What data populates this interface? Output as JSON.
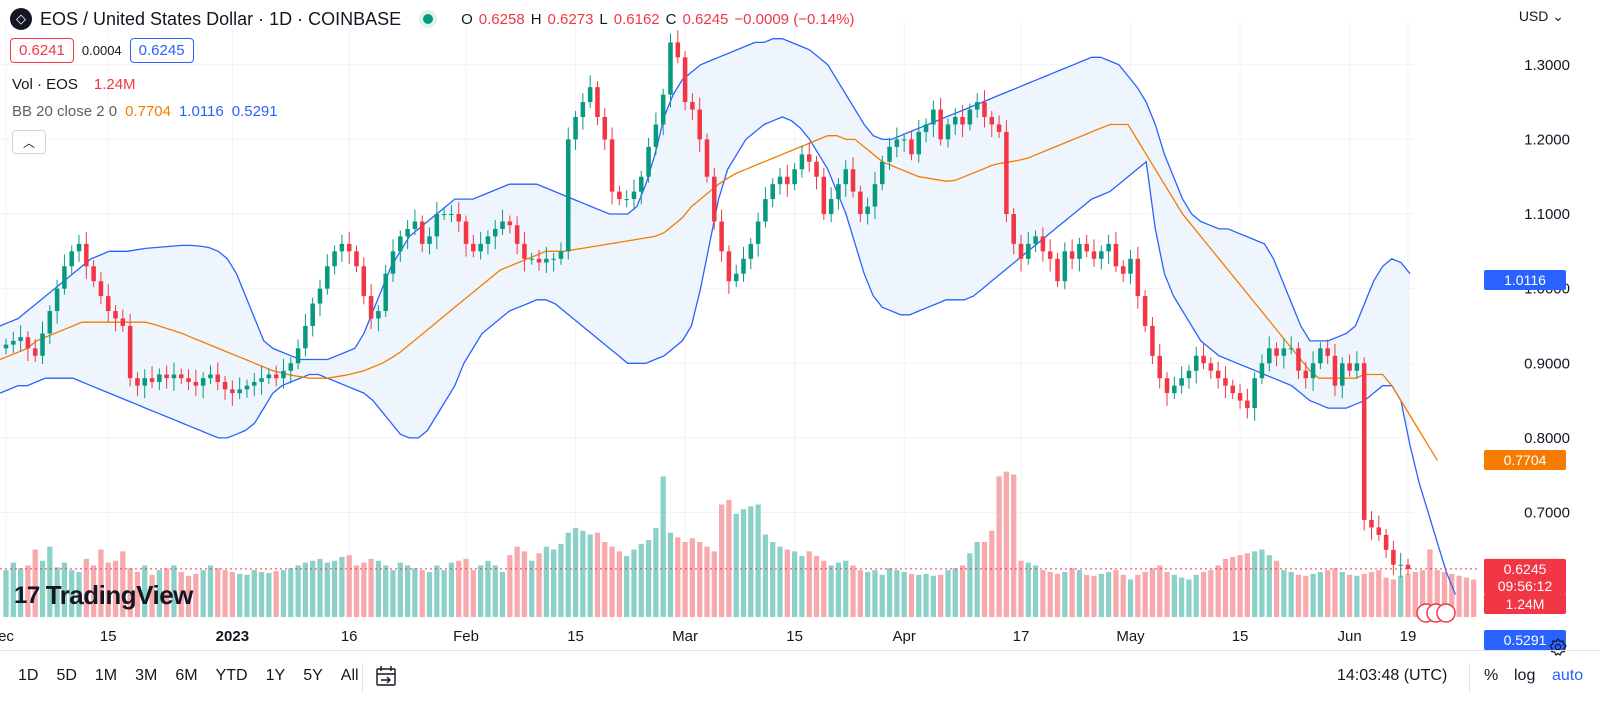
{
  "header": {
    "symbol_title": "EOS / United States Dollar · 1D · COINBASE",
    "ohlc": [
      {
        "k": "O",
        "v": "0.6258"
      },
      {
        "k": "H",
        "v": "0.6273"
      },
      {
        "k": "L",
        "v": "0.6162"
      },
      {
        "k": "C",
        "v": "0.6245"
      }
    ],
    "change": "−0.0009 (−0.14%)",
    "currency": "USD"
  },
  "pricebox": {
    "bid": "0.6241",
    "spread": "0.0004",
    "ask": "0.6245"
  },
  "legend": {
    "volume": {
      "label": "Vol · EOS",
      "value": "1.24M"
    },
    "bb": {
      "label": "BB 20 close 2 0",
      "mid": "0.7704",
      "upper": "1.0116",
      "lower": "0.5291"
    }
  },
  "badges": {
    "upper": "1.0116",
    "mid": "0.7704",
    "price": "0.6245",
    "countdown": "09:56:12",
    "lower": "0.5291",
    "volume": "1.24M"
  },
  "toolbar": {
    "ranges": [
      "1D",
      "5D",
      "1M",
      "3M",
      "6M",
      "YTD",
      "1Y",
      "5Y",
      "All"
    ],
    "clock": "14:03:48 (UTC)",
    "pct": "%",
    "log": "log",
    "auto": "auto"
  },
  "brand": {
    "name": "TradingView"
  },
  "colors": {
    "up": "#089981",
    "down": "#f23645",
    "upVol": "#8cd1c7",
    "downVol": "#f7a9ae",
    "bbMid": "#f57c00",
    "bbBand": "#2962ff",
    "bbFill": "#eaf2fb"
  },
  "chart_data": {
    "type": "candlestick",
    "x_tick_labels": [
      "ec",
      "15",
      "2023",
      "16",
      "Feb",
      "15",
      "Mar",
      "15",
      "Apr",
      "17",
      "May",
      "15",
      "Jun",
      "19"
    ],
    "y_ticks": [
      "0.7000",
      "0.8000",
      "0.9000",
      "1.0000",
      "1.1000",
      "1.2000",
      "1.3000"
    ],
    "ylim": [
      0.56,
      1.36
    ],
    "grid": true,
    "closes": [
      0.925,
      0.93,
      0.935,
      0.92,
      0.91,
      0.94,
      0.97,
      1.0,
      1.03,
      1.05,
      1.06,
      1.03,
      1.01,
      0.99,
      0.97,
      0.96,
      0.95,
      0.88,
      0.87,
      0.88,
      0.875,
      0.885,
      0.88,
      0.885,
      0.88,
      0.875,
      0.87,
      0.88,
      0.885,
      0.875,
      0.865,
      0.86,
      0.865,
      0.87,
      0.875,
      0.88,
      0.885,
      0.88,
      0.89,
      0.9,
      0.92,
      0.95,
      0.98,
      1.0,
      1.03,
      1.05,
      1.06,
      1.05,
      1.03,
      0.99,
      0.96,
      0.97,
      1.02,
      1.05,
      1.07,
      1.08,
      1.09,
      1.06,
      1.07,
      1.1,
      1.1,
      1.1,
      1.09,
      1.06,
      1.05,
      1.06,
      1.07,
      1.08,
      1.09,
      1.085,
      1.06,
      1.04,
      1.04,
      1.035,
      1.04,
      1.04,
      1.05,
      1.2,
      1.23,
      1.25,
      1.27,
      1.23,
      1.2,
      1.13,
      1.12,
      1.12,
      1.13,
      1.15,
      1.19,
      1.22,
      1.26,
      1.33,
      1.31,
      1.25,
      1.24,
      1.2,
      1.15,
      1.09,
      1.05,
      1.01,
      1.02,
      1.04,
      1.06,
      1.09,
      1.12,
      1.14,
      1.15,
      1.14,
      1.16,
      1.18,
      1.17,
      1.15,
      1.1,
      1.12,
      1.14,
      1.16,
      1.13,
      1.1,
      1.11,
      1.14,
      1.17,
      1.19,
      1.2,
      1.2,
      1.18,
      1.21,
      1.22,
      1.24,
      1.2,
      1.22,
      1.23,
      1.22,
      1.24,
      1.25,
      1.23,
      1.22,
      1.21,
      1.1,
      1.06,
      1.04,
      1.06,
      1.07,
      1.05,
      1.04,
      1.01,
      1.05,
      1.04,
      1.06,
      1.05,
      1.04,
      1.05,
      1.06,
      1.03,
      1.02,
      1.04,
      0.99,
      0.95,
      0.91,
      0.88,
      0.86,
      0.87,
      0.88,
      0.89,
      0.91,
      0.9,
      0.89,
      0.88,
      0.87,
      0.86,
      0.85,
      0.84,
      0.88,
      0.9,
      0.92,
      0.91,
      0.92,
      0.92,
      0.89,
      0.88,
      0.9,
      0.92,
      0.91,
      0.87,
      0.9,
      0.89,
      0.9,
      0.69,
      0.68,
      0.67,
      0.65,
      0.63,
      0.63,
      0.6245
    ],
    "volumes": [
      50,
      58,
      52,
      55,
      72,
      60,
      75,
      53,
      58,
      50,
      48,
      62,
      55,
      72,
      58,
      60,
      70,
      52,
      48,
      55,
      45,
      50,
      52,
      55,
      48,
      44,
      46,
      50,
      55,
      52,
      50,
      48,
      46,
      45,
      50,
      48,
      47,
      49,
      50,
      52,
      55,
      58,
      60,
      62,
      58,
      60,
      64,
      66,
      55,
      58,
      62,
      60,
      55,
      50,
      58,
      55,
      52,
      50,
      48,
      55,
      50,
      58,
      60,
      62,
      50,
      55,
      60,
      55,
      48,
      66,
      75,
      70,
      60,
      68,
      75,
      72,
      78,
      90,
      95,
      92,
      88,
      90,
      80,
      75,
      70,
      65,
      72,
      78,
      82,
      95,
      150,
      90,
      85,
      80,
      84,
      80,
      75,
      70,
      120,
      125,
      110,
      115,
      118,
      120,
      88,
      80,
      75,
      72,
      70,
      65,
      70,
      65,
      60,
      55,
      58,
      60,
      55,
      50,
      48,
      50,
      45,
      52,
      50,
      48,
      46,
      45,
      46,
      44,
      45,
      50,
      52,
      55,
      68,
      80,
      80,
      92,
      150,
      155,
      152,
      60,
      58,
      55,
      50,
      48,
      46,
      48,
      52,
      50,
      45,
      44,
      46,
      48,
      50,
      45,
      40,
      45,
      48,
      52,
      55,
      48,
      45,
      42,
      40,
      45,
      48,
      50,
      55,
      62,
      64,
      66,
      68,
      70,
      72,
      66,
      60,
      50,
      48,
      45,
      44,
      46,
      48,
      50,
      52,
      48,
      45,
      44,
      46,
      48,
      50,
      42,
      40,
      44,
      46,
      48,
      50,
      72,
      50,
      48,
      46,
      44,
      42,
      40
    ],
    "bb_upper": [
      0.95,
      0.955,
      0.96,
      0.97,
      0.98,
      0.99,
      1.0,
      1.01,
      1.02,
      1.03,
      1.04,
      1.045,
      1.05,
      1.05,
      1.05,
      1.052,
      1.054,
      1.055,
      1.056,
      1.057,
      1.058,
      1.058,
      1.057,
      1.055,
      1.05,
      1.04,
      1.02,
      0.99,
      0.96,
      0.93,
      0.92,
      0.915,
      0.91,
      0.905,
      0.905,
      0.905,
      0.905,
      0.91,
      0.915,
      0.92,
      0.94,
      0.97,
      1.0,
      1.03,
      1.05,
      1.07,
      1.08,
      1.09,
      1.1,
      1.11,
      1.12,
      1.12,
      1.12,
      1.125,
      1.13,
      1.135,
      1.14,
      1.14,
      1.14,
      1.14,
      1.135,
      1.13,
      1.125,
      1.12,
      1.115,
      1.11,
      1.105,
      1.1,
      1.1,
      1.1,
      1.11,
      1.14,
      1.18,
      1.23,
      1.26,
      1.28,
      1.29,
      1.3,
      1.305,
      1.31,
      1.315,
      1.32,
      1.325,
      1.33,
      1.33,
      1.335,
      1.335,
      1.33,
      1.325,
      1.32,
      1.31,
      1.3,
      1.28,
      1.26,
      1.24,
      1.22,
      1.205,
      1.2,
      1.2,
      1.205,
      1.21,
      1.215,
      1.22,
      1.225,
      1.23,
      1.235,
      1.24,
      1.245,
      1.25,
      1.255,
      1.26,
      1.265,
      1.27,
      1.275,
      1.28,
      1.285,
      1.29,
      1.295,
      1.3,
      1.305,
      1.31,
      1.31,
      1.305,
      1.3,
      1.285,
      1.27,
      1.25,
      1.22,
      1.18,
      1.15,
      1.12,
      1.1,
      1.09,
      1.085,
      1.08,
      1.08,
      1.075,
      1.07,
      1.065,
      1.06,
      1.04,
      1.01,
      0.98,
      0.95,
      0.93,
      0.93,
      0.93,
      0.935,
      0.94,
      0.95,
      0.98,
      1.01,
      1.03,
      1.04,
      1.035,
      1.02
    ],
    "bb_mid": [
      0.905,
      0.91,
      0.915,
      0.92,
      0.93,
      0.935,
      0.94,
      0.945,
      0.95,
      0.955,
      0.955,
      0.955,
      0.955,
      0.955,
      0.955,
      0.955,
      0.955,
      0.952,
      0.948,
      0.944,
      0.94,
      0.935,
      0.93,
      0.925,
      0.92,
      0.915,
      0.91,
      0.905,
      0.9,
      0.895,
      0.89,
      0.887,
      0.884,
      0.882,
      0.88,
      0.88,
      0.88,
      0.882,
      0.884,
      0.887,
      0.89,
      0.895,
      0.9,
      0.907,
      0.915,
      0.925,
      0.935,
      0.945,
      0.955,
      0.965,
      0.975,
      0.985,
      0.995,
      1.005,
      1.015,
      1.025,
      1.03,
      1.035,
      1.04,
      1.045,
      1.05,
      1.05,
      1.05,
      1.052,
      1.054,
      1.056,
      1.058,
      1.06,
      1.062,
      1.064,
      1.066,
      1.068,
      1.07,
      1.075,
      1.085,
      1.095,
      1.11,
      1.12,
      1.13,
      1.14,
      1.148,
      1.155,
      1.16,
      1.165,
      1.17,
      1.175,
      1.18,
      1.185,
      1.19,
      1.195,
      1.2,
      1.205,
      1.205,
      1.2,
      1.2,
      1.19,
      1.18,
      1.17,
      1.165,
      1.16,
      1.155,
      1.15,
      1.148,
      1.146,
      1.144,
      1.145,
      1.15,
      1.155,
      1.16,
      1.165,
      1.168,
      1.17,
      1.172,
      1.175,
      1.18,
      1.185,
      1.19,
      1.195,
      1.2,
      1.205,
      1.21,
      1.215,
      1.22,
      1.22,
      1.22,
      1.2,
      1.18,
      1.16,
      1.14,
      1.12,
      1.1,
      1.085,
      1.07,
      1.055,
      1.04,
      1.025,
      1.01,
      0.995,
      0.98,
      0.965,
      0.95,
      0.935,
      0.92,
      0.905,
      0.89,
      0.88,
      0.88,
      0.88,
      0.88,
      0.88,
      0.885,
      0.885,
      0.885,
      0.87,
      0.85,
      0.83,
      0.81,
      0.79,
      0.77
    ],
    "bb_lower": [
      0.86,
      0.865,
      0.87,
      0.87,
      0.875,
      0.88,
      0.88,
      0.88,
      0.88,
      0.875,
      0.87,
      0.865,
      0.86,
      0.855,
      0.85,
      0.845,
      0.84,
      0.835,
      0.83,
      0.825,
      0.82,
      0.815,
      0.81,
      0.805,
      0.8,
      0.8,
      0.805,
      0.81,
      0.82,
      0.84,
      0.86,
      0.87,
      0.875,
      0.88,
      0.885,
      0.885,
      0.88,
      0.875,
      0.87,
      0.865,
      0.86,
      0.85,
      0.835,
      0.82,
      0.805,
      0.8,
      0.8,
      0.81,
      0.83,
      0.85,
      0.87,
      0.9,
      0.92,
      0.94,
      0.95,
      0.96,
      0.97,
      0.975,
      0.98,
      0.985,
      0.985,
      0.98,
      0.97,
      0.96,
      0.95,
      0.94,
      0.93,
      0.92,
      0.91,
      0.9,
      0.9,
      0.9,
      0.905,
      0.91,
      0.92,
      0.93,
      0.95,
      1.0,
      1.06,
      1.12,
      1.16,
      1.18,
      1.2,
      1.21,
      1.22,
      1.225,
      1.23,
      1.225,
      1.215,
      1.2,
      1.18,
      1.16,
      1.13,
      1.1,
      1.06,
      1.02,
      0.99,
      0.975,
      0.97,
      0.965,
      0.965,
      0.97,
      0.975,
      0.98,
      0.985,
      0.985,
      0.985,
      0.99,
      1.0,
      1.01,
      1.02,
      1.03,
      1.04,
      1.05,
      1.06,
      1.07,
      1.08,
      1.09,
      1.1,
      1.11,
      1.12,
      1.125,
      1.13,
      1.14,
      1.15,
      1.16,
      1.17,
      1.08,
      1.02,
      0.99,
      0.97,
      0.95,
      0.93,
      0.92,
      0.91,
      0.905,
      0.9,
      0.895,
      0.89,
      0.885,
      0.88,
      0.875,
      0.87,
      0.86,
      0.85,
      0.845,
      0.84,
      0.84,
      0.84,
      0.845,
      0.85,
      0.86,
      0.87,
      0.87,
      0.85,
      0.79,
      0.74,
      0.7,
      0.66,
      0.62,
      0.59
    ]
  }
}
